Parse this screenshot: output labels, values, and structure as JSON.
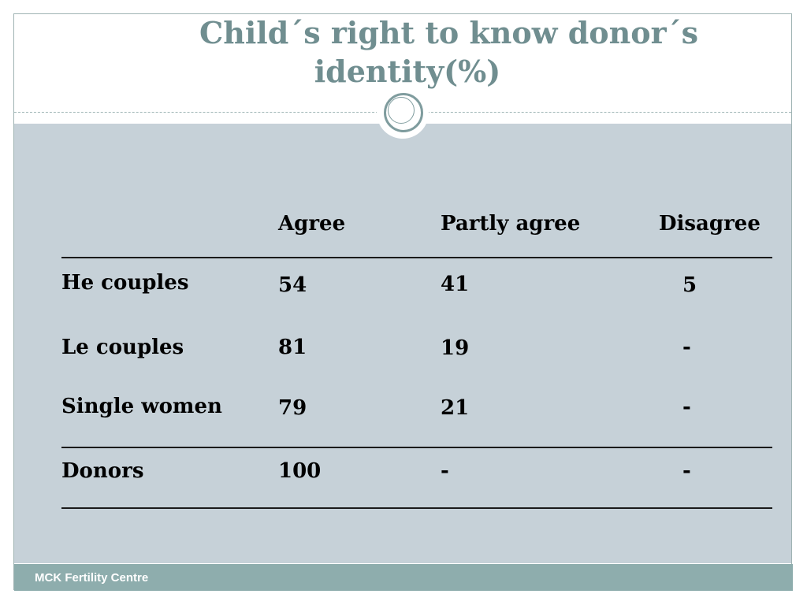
{
  "title": {
    "line1": "Child´s right to know donor´s",
    "line2": "identity(%)"
  },
  "table": {
    "headers": [
      "",
      "Agree",
      "Partly agree",
      "Disagree"
    ],
    "rows": [
      {
        "label": "He  couples",
        "agree": "54",
        "partly_agree": "41",
        "disagree": "5"
      },
      {
        "label": "Le  couples",
        "agree": "81",
        "partly_agree": "19",
        "disagree": "-"
      },
      {
        "label": "Single women",
        "agree": "79",
        "partly_agree": "21",
        "disagree": "-"
      },
      {
        "label": "Donors",
        "agree": "100",
        "partly_agree": "-",
        "disagree": "-"
      }
    ]
  },
  "footer": {
    "text": "MCK Fertility Centre"
  },
  "colors": {
    "title": "#708e90",
    "panel": "#c6d1d8",
    "footer": "#8eadad"
  }
}
